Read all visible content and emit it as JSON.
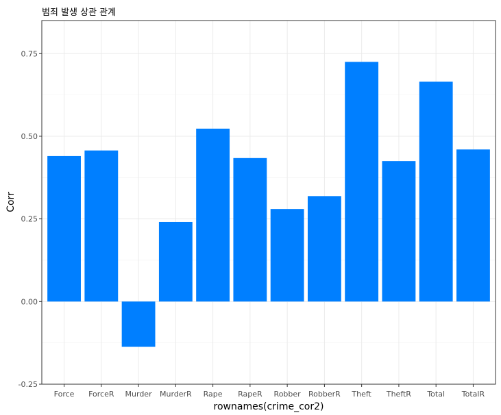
{
  "chart_data": {
    "type": "bar",
    "title": "범죄 발생 상관 관계",
    "xlabel": "rownames(crime_cor2)",
    "ylabel": "Corr",
    "categories": [
      "Force",
      "ForceR",
      "Murder",
      "MurderR",
      "Rape",
      "RapeR",
      "Robber",
      "RobberR",
      "Theft",
      "TheftR",
      "Total",
      "TotalR"
    ],
    "values": [
      0.44,
      0.457,
      -0.137,
      0.241,
      0.523,
      0.434,
      0.28,
      0.319,
      0.725,
      0.425,
      0.665,
      0.46
    ],
    "ylim": [
      -0.25,
      0.85
    ],
    "yticks": [
      -0.25,
      0.0,
      0.25,
      0.5,
      0.75
    ],
    "ytick_labels": [
      "-0.25",
      "0.00",
      "0.25",
      "0.50",
      "0.75"
    ],
    "grid": true,
    "bar_color": "#007FFF"
  }
}
